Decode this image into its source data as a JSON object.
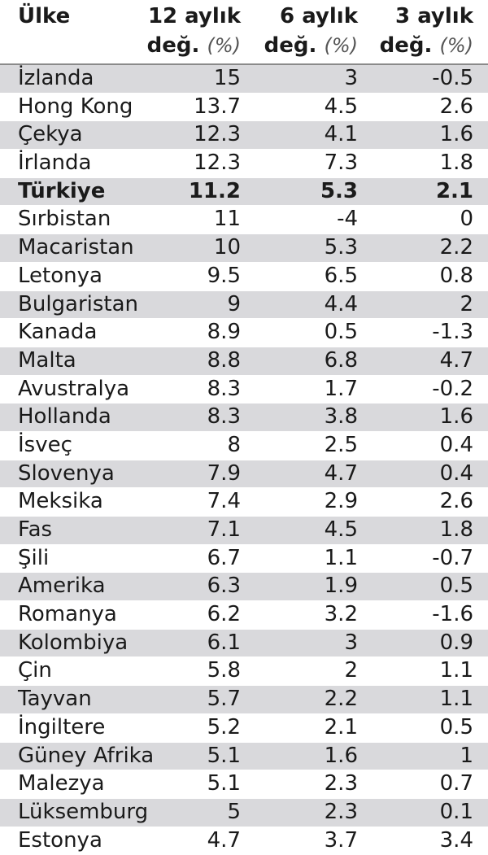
{
  "headers": {
    "country": "Ülke",
    "c12_line1": "12 aylık",
    "c6_line1": "6 aylık",
    "c3_line1": "3 aylık",
    "line2_word": "değ.",
    "line2_unit": "(%)"
  },
  "rows": [
    {
      "country": "İzlanda",
      "m12": "15",
      "m6": "3",
      "m3": "-0.5",
      "shaded": true,
      "bold": false
    },
    {
      "country": "Hong Kong",
      "m12": "13.7",
      "m6": "4.5",
      "m3": "2.6",
      "shaded": false,
      "bold": false
    },
    {
      "country": "Çekya",
      "m12": "12.3",
      "m6": "4.1",
      "m3": "1.6",
      "shaded": true,
      "bold": false
    },
    {
      "country": "İrlanda",
      "m12": "12.3",
      "m6": "7.3",
      "m3": "1.8",
      "shaded": false,
      "bold": false
    },
    {
      "country": "Türkiye",
      "m12": "11.2",
      "m6": "5.3",
      "m3": "2.1",
      "shaded": true,
      "bold": true
    },
    {
      "country": "Sırbistan",
      "m12": "11",
      "m6": "-4",
      "m3": "0",
      "shaded": false,
      "bold": false
    },
    {
      "country": "Macaristan",
      "m12": "10",
      "m6": "5.3",
      "m3": "2.2",
      "shaded": true,
      "bold": false
    },
    {
      "country": "Letonya",
      "m12": "9.5",
      "m6": "6.5",
      "m3": "0.8",
      "shaded": false,
      "bold": false
    },
    {
      "country": "Bulgaristan",
      "m12": "9",
      "m6": "4.4",
      "m3": "2",
      "shaded": true,
      "bold": false
    },
    {
      "country": "Kanada",
      "m12": "8.9",
      "m6": "0.5",
      "m3": "-1.3",
      "shaded": false,
      "bold": false
    },
    {
      "country": "Malta",
      "m12": "8.8",
      "m6": "6.8",
      "m3": "4.7",
      "shaded": true,
      "bold": false
    },
    {
      "country": "Avustralya",
      "m12": "8.3",
      "m6": "1.7",
      "m3": "-0.2",
      "shaded": false,
      "bold": false
    },
    {
      "country": "Hollanda",
      "m12": "8.3",
      "m6": "3.8",
      "m3": "1.6",
      "shaded": true,
      "bold": false
    },
    {
      "country": "İsveç",
      "m12": "8",
      "m6": "2.5",
      "m3": "0.4",
      "shaded": false,
      "bold": false
    },
    {
      "country": "Slovenya",
      "m12": "7.9",
      "m6": "4.7",
      "m3": "0.4",
      "shaded": true,
      "bold": false
    },
    {
      "country": "Meksika",
      "m12": "7.4",
      "m6": "2.9",
      "m3": "2.6",
      "shaded": false,
      "bold": false
    },
    {
      "country": "Fas",
      "m12": "7.1",
      "m6": "4.5",
      "m3": "1.8",
      "shaded": true,
      "bold": false
    },
    {
      "country": "Şili",
      "m12": "6.7",
      "m6": "1.1",
      "m3": "-0.7",
      "shaded": false,
      "bold": false
    },
    {
      "country": "Amerika",
      "m12": "6.3",
      "m6": "1.9",
      "m3": "0.5",
      "shaded": true,
      "bold": false
    },
    {
      "country": "Romanya",
      "m12": "6.2",
      "m6": "3.2",
      "m3": "-1.6",
      "shaded": false,
      "bold": false
    },
    {
      "country": "Kolombiya",
      "m12": "6.1",
      "m6": "3",
      "m3": "0.9",
      "shaded": true,
      "bold": false
    },
    {
      "country": "Çin",
      "m12": "5.8",
      "m6": "2",
      "m3": "1.1",
      "shaded": false,
      "bold": false
    },
    {
      "country": "Tayvan",
      "m12": "5.7",
      "m6": "2.2",
      "m3": "1.1",
      "shaded": true,
      "bold": false
    },
    {
      "country": "İngiltere",
      "m12": "5.2",
      "m6": "2.1",
      "m3": "0.5",
      "shaded": false,
      "bold": false
    },
    {
      "country": "Güney Afrika",
      "m12": "5.1",
      "m6": "1.6",
      "m3": "1",
      "shaded": true,
      "bold": false
    },
    {
      "country": "Malezya",
      "m12": "5.1",
      "m6": "2.3",
      "m3": "0.7",
      "shaded": false,
      "bold": false
    },
    {
      "country": "Lüksemburg",
      "m12": "5",
      "m6": "2.3",
      "m3": "0.1",
      "shaded": true,
      "bold": false
    },
    {
      "country": "Estonya",
      "m12": "4.7",
      "m6": "3.7",
      "m3": "3.4",
      "shaded": false,
      "bold": false
    }
  ]
}
